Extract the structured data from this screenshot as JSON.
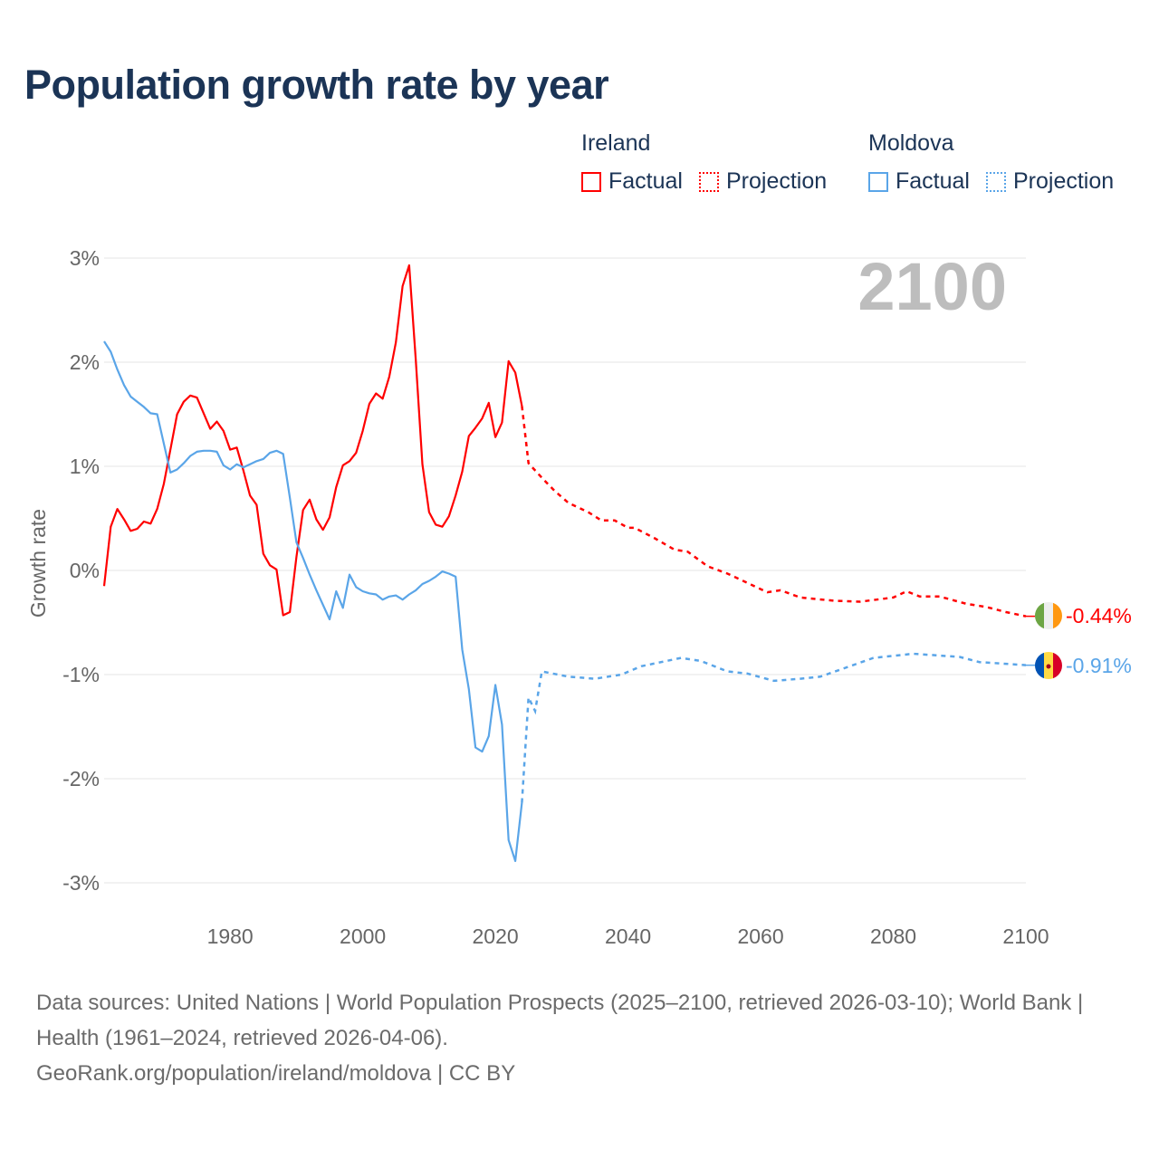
{
  "title": "Population growth rate by year",
  "legend": {
    "groups": [
      {
        "name": "Ireland",
        "factual": "Factual",
        "projection": "Projection",
        "color": "#ff0000"
      },
      {
        "name": "Moldova",
        "factual": "Factual",
        "projection": "Projection",
        "color": "#5aa5e8"
      }
    ]
  },
  "year_label": "2100",
  "footer": {
    "sources": "Data sources: United Nations | World Population Prospects (2025–2100, retrieved 2026-03-10); World Bank | Health (1961–2024, retrieved 2026-04-06).",
    "credit": "GeoRank.org/population/ireland/moldova | CC BY"
  },
  "chart_data": {
    "type": "line",
    "title": "Population growth rate by year",
    "xlabel": "",
    "ylabel": "Growth rate",
    "xlim": [
      1961,
      2100
    ],
    "ylim": [
      -3.3,
      3.2
    ],
    "x_ticks": [
      1980,
      2000,
      2020,
      2040,
      2060,
      2080,
      2100
    ],
    "x_tick_labels": [
      "1980",
      "2000",
      "2020",
      "2040",
      "2060",
      "2080",
      "2100"
    ],
    "y_ticks": [
      3,
      2,
      1,
      0,
      -1,
      -2,
      -3
    ],
    "y_tick_labels": [
      "3%",
      "2%",
      "1%",
      "0%",
      "-1%",
      "-2%",
      "-3%"
    ],
    "grid": true,
    "legend_position": "top-right",
    "series": [
      {
        "name": "Ireland",
        "color": "#ff0000",
        "end_label": "-0.44%",
        "flag": "ireland-flag",
        "factual_start_year": 1961,
        "factual": [
          -0.15,
          0.42,
          0.59,
          0.49,
          0.38,
          0.4,
          0.47,
          0.45,
          0.59,
          0.83,
          1.16,
          1.5,
          1.62,
          1.68,
          1.66,
          1.51,
          1.36,
          1.43,
          1.34,
          1.16,
          1.18,
          0.96,
          0.72,
          0.63,
          0.16,
          0.05,
          0.01,
          -0.43,
          -0.4,
          0.13,
          0.58,
          0.68,
          0.49,
          0.39,
          0.51,
          0.8,
          1.01,
          1.05,
          1.13,
          1.34,
          1.6,
          1.7,
          1.65,
          1.86,
          2.19,
          2.73,
          2.93,
          2.02,
          1.02,
          0.56,
          0.44,
          0.42,
          0.52,
          0.72,
          0.95,
          1.29,
          1.37,
          1.46,
          1.61,
          1.28,
          1.42,
          2.01,
          1.9,
          1.58
        ],
        "projection": [
          [
            2024,
            1.58
          ],
          [
            2025,
            1.03
          ],
          [
            2027,
            0.89
          ],
          [
            2029,
            0.76
          ],
          [
            2031,
            0.65
          ],
          [
            2034,
            0.56
          ],
          [
            2036,
            0.48
          ],
          [
            2038,
            0.48
          ],
          [
            2040,
            0.41
          ],
          [
            2041,
            0.41
          ],
          [
            2044,
            0.31
          ],
          [
            2047,
            0.2
          ],
          [
            2049,
            0.18
          ],
          [
            2052,
            0.04
          ],
          [
            2055,
            -0.03
          ],
          [
            2056,
            -0.06
          ],
          [
            2061,
            -0.21
          ],
          [
            2063,
            -0.19
          ],
          [
            2066,
            -0.26
          ],
          [
            2071,
            -0.29
          ],
          [
            2075,
            -0.3
          ],
          [
            2080,
            -0.26
          ],
          [
            2082,
            -0.2
          ],
          [
            2084,
            -0.25
          ],
          [
            2087,
            -0.25
          ],
          [
            2091,
            -0.32
          ],
          [
            2094,
            -0.35
          ],
          [
            2097,
            -0.4
          ],
          [
            2100,
            -0.44
          ]
        ]
      },
      {
        "name": "Moldova",
        "color": "#5aa5e8",
        "end_label": "-0.91%",
        "flag": "moldova-flag",
        "factual_start_year": 1961,
        "factual": [
          2.2,
          2.1,
          1.93,
          1.78,
          1.67,
          1.62,
          1.57,
          1.51,
          1.5,
          1.22,
          0.94,
          0.97,
          1.03,
          1.1,
          1.14,
          1.15,
          1.15,
          1.14,
          1.01,
          0.97,
          1.02,
          0.99,
          1.02,
          1.05,
          1.07,
          1.13,
          1.15,
          1.12,
          0.7,
          0.27,
          0.12,
          -0.04,
          -0.19,
          -0.33,
          -0.47,
          -0.2,
          -0.36,
          -0.04,
          -0.16,
          -0.2,
          -0.22,
          -0.23,
          -0.28,
          -0.25,
          -0.24,
          -0.28,
          -0.23,
          -0.19,
          -0.13,
          -0.1,
          -0.06,
          -0.01,
          -0.03,
          -0.06,
          -0.76,
          -1.14,
          -1.7,
          -1.74,
          -1.59,
          -1.1,
          -1.48,
          -2.59,
          -2.79,
          -2.23
        ],
        "projection": [
          [
            2024,
            -2.23
          ],
          [
            2025,
            -1.22
          ],
          [
            2026,
            -1.35
          ],
          [
            2027,
            -0.97
          ],
          [
            2031,
            -1.02
          ],
          [
            2035,
            -1.04
          ],
          [
            2039,
            -1.0
          ],
          [
            2042,
            -0.92
          ],
          [
            2045,
            -0.88
          ],
          [
            2048,
            -0.84
          ],
          [
            2051,
            -0.87
          ],
          [
            2055,
            -0.97
          ],
          [
            2058,
            -0.99
          ],
          [
            2062,
            -1.06
          ],
          [
            2066,
            -1.04
          ],
          [
            2069,
            -1.02
          ],
          [
            2077,
            -0.84
          ],
          [
            2083,
            -0.8
          ],
          [
            2090,
            -0.83
          ],
          [
            2093,
            -0.88
          ],
          [
            2100,
            -0.91
          ]
        ]
      }
    ]
  }
}
